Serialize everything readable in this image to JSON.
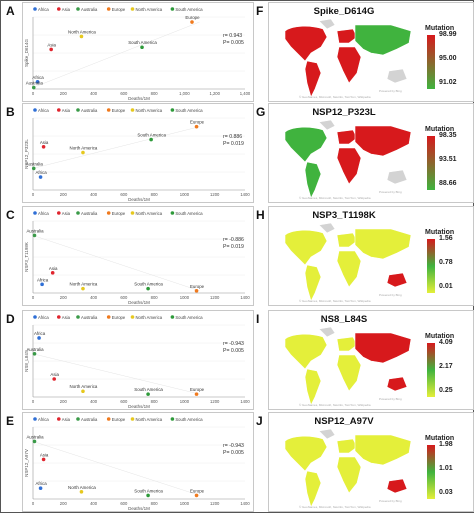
{
  "legend_regions": [
    "Africa",
    "Asia",
    "Australia",
    "Europe",
    "North America",
    "South America"
  ],
  "colors": {
    "Africa": "#2f6fd6",
    "Asia": "#e0252e",
    "Australia": "#3a9a48",
    "Europe": "#f07a1e",
    "North America": "#e6c81e",
    "South America": "#2e9a3a",
    "map_high": "#d7191c",
    "map_mid": "#40b33e",
    "map_low": "#e4ef3a",
    "map_missing": "#d3d3d3"
  },
  "scatter_panels": [
    {
      "label": "A",
      "ylabel": "Spike_D614G",
      "xlabel": "Deaths/1M",
      "xticks": [
        "0",
        "200",
        "400",
        "600",
        "800",
        "1,000",
        "1,200",
        "1,400"
      ],
      "stat_r": "r= 0.943",
      "stat_p": "P= 0.005",
      "chart_data": {
        "type": "scatter",
        "xlim": [
          0,
          1400
        ],
        "ylim": [
          0,
          100
        ],
        "points": [
          {
            "region": "Africa",
            "x": 30,
            "y": 10,
            "label": "Africa"
          },
          {
            "region": "Asia",
            "x": 120,
            "y": 55,
            "label": "Asia"
          },
          {
            "region": "Australia",
            "x": 5,
            "y": 2,
            "label": "Australia"
          },
          {
            "region": "Europe",
            "x": 1050,
            "y": 93,
            "label": "Europe"
          },
          {
            "region": "North America",
            "x": 320,
            "y": 73,
            "label": "North America"
          },
          {
            "region": "South America",
            "x": 720,
            "y": 58,
            "label": "South America"
          }
        ]
      }
    },
    {
      "label": "B",
      "ylabel": "NSP12_P323L",
      "xlabel": "Deaths/1M",
      "xticks": [
        "0",
        "200",
        "400",
        "600",
        "800",
        "1000",
        "1200",
        "1400"
      ],
      "stat_r": "r= 0.886",
      "stat_p": "P= 0.019",
      "chart_data": {
        "type": "scatter",
        "xlim": [
          0,
          1400
        ],
        "ylim": [
          0,
          100
        ],
        "points": [
          {
            "region": "Africa",
            "x": 50,
            "y": 18,
            "label": "Africa"
          },
          {
            "region": "Asia",
            "x": 70,
            "y": 60,
            "label": "Asia"
          },
          {
            "region": "Australia",
            "x": 5,
            "y": 30,
            "label": "Australia"
          },
          {
            "region": "Europe",
            "x": 1080,
            "y": 88,
            "label": "Europe"
          },
          {
            "region": "North America",
            "x": 330,
            "y": 52,
            "label": "North America"
          },
          {
            "region": "South America",
            "x": 780,
            "y": 70,
            "label": "South America"
          }
        ]
      }
    },
    {
      "label": "C",
      "ylabel": "NSP3_T1198K",
      "xlabel": "Deaths/1M",
      "xticks": [
        "0",
        "200",
        "400",
        "600",
        "800",
        "1000",
        "1200",
        "1400"
      ],
      "stat_r": "r= -0.886",
      "stat_p": "P= 0.019",
      "chart_data": {
        "type": "scatter",
        "xlim": [
          0,
          1400
        ],
        "ylim": [
          0,
          100
        ],
        "points": [
          {
            "region": "Africa",
            "x": 60,
            "y": 12,
            "label": "Africa"
          },
          {
            "region": "Asia",
            "x": 130,
            "y": 28,
            "label": "Asia"
          },
          {
            "region": "Australia",
            "x": 10,
            "y": 80,
            "label": "Australia"
          },
          {
            "region": "Europe",
            "x": 1080,
            "y": 3,
            "label": "Europe"
          },
          {
            "region": "North America",
            "x": 330,
            "y": 6,
            "label": "North America"
          },
          {
            "region": "South America",
            "x": 760,
            "y": 6,
            "label": "South America"
          }
        ]
      }
    },
    {
      "label": "D",
      "ylabel": "NS8_L84S",
      "xlabel": "Deaths/1M",
      "xticks": [
        "0",
        "200",
        "400",
        "600",
        "800",
        "1000",
        "1200",
        "1400"
      ],
      "stat_r": "r= -0.943",
      "stat_p": "P= 0.005",
      "chart_data": {
        "type": "scatter",
        "xlim": [
          0,
          1400
        ],
        "ylim": [
          0,
          100
        ],
        "points": [
          {
            "region": "Africa",
            "x": 40,
            "y": 82,
            "label": "Africa"
          },
          {
            "region": "Asia",
            "x": 140,
            "y": 25,
            "label": "Asia"
          },
          {
            "region": "Australia",
            "x": 10,
            "y": 60,
            "label": "Australia"
          },
          {
            "region": "Europe",
            "x": 1080,
            "y": 4,
            "label": "Europe"
          },
          {
            "region": "North America",
            "x": 330,
            "y": 8,
            "label": "North America"
          },
          {
            "region": "South America",
            "x": 760,
            "y": 4,
            "label": "South America"
          }
        ]
      }
    },
    {
      "label": "E",
      "ylabel": "NSP12_A97V",
      "xlabel": "Deaths/1M",
      "xticks": [
        "0",
        "200",
        "400",
        "600",
        "800",
        "1000",
        "1200",
        "1400"
      ],
      "stat_r": "r= -0.943",
      "stat_p": "P= 0.005",
      "chart_data": {
        "type": "scatter",
        "xlim": [
          0,
          1400
        ],
        "ylim": [
          0,
          100
        ],
        "points": [
          {
            "region": "Africa",
            "x": 50,
            "y": 15,
            "label": "Africa"
          },
          {
            "region": "Asia",
            "x": 70,
            "y": 55,
            "label": "Asia"
          },
          {
            "region": "Australia",
            "x": 10,
            "y": 80,
            "label": "Australia"
          },
          {
            "region": "Europe",
            "x": 1080,
            "y": 5,
            "label": "Europe"
          },
          {
            "region": "North America",
            "x": 320,
            "y": 10,
            "label": "North America"
          },
          {
            "region": "South America",
            "x": 760,
            "y": 5,
            "label": "South America"
          }
        ]
      }
    }
  ],
  "map_panels": [
    {
      "label": "F",
      "title": "Spike_D614G",
      "legend_title": "Mutation",
      "ticks": [
        "98.99",
        "95.00",
        "91.02"
      ],
      "gradient": [
        "#d7191c",
        "#40b33e"
      ],
      "scheme": "high"
    },
    {
      "label": "G",
      "title": "NSP12_P323L",
      "legend_title": "Mutation",
      "ticks": [
        "98.35",
        "93.51",
        "88.66"
      ],
      "gradient": [
        "#d7191c",
        "#40b33e"
      ],
      "scheme": "mixed"
    },
    {
      "label": "H",
      "title": "NSP3_T1198K",
      "legend_title": "Mutation",
      "ticks": [
        "1.56",
        "0.78",
        "0.01"
      ],
      "gradient": [
        "#d7191c",
        "#40b33e",
        "#e4ef3a"
      ],
      "scheme": "low"
    },
    {
      "label": "I",
      "title": "NS8_L84S",
      "legend_title": "Mutation",
      "ticks": [
        "4.09",
        "2.17",
        "0.25"
      ],
      "gradient": [
        "#d7191c",
        "#40b33e",
        "#e4ef3a"
      ],
      "scheme": "asia"
    },
    {
      "label": "J",
      "title": "NSP12_A97V",
      "legend_title": "Mutation",
      "ticks": [
        "1.98",
        "1.01",
        "0.03"
      ],
      "gradient": [
        "#d7191c",
        "#40b33e",
        "#e4ef3a"
      ],
      "scheme": "low"
    }
  ],
  "map_credit": "Powered by Bing",
  "map_credit_long": "© GeoNames, Microsoft, Navinfo, TomTom, Wikipedia"
}
